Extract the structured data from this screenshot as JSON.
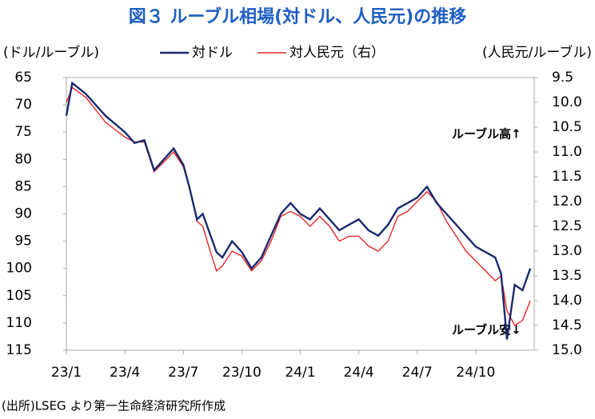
{
  "chart_data": {
    "type": "line",
    "title": "図３ ルーブル相場(対ドル、人民元)の推移",
    "y_label": "(ドル/ルーブル)",
    "y2_label": "(人民元/ルーブル)",
    "annotations": [
      "ルーブル高↑",
      "ルーブル安↓"
    ],
    "source": "(出所)LSEG より第一生命経済研究所作成",
    "x": [
      0,
      0.3,
      1,
      2,
      3,
      3.5,
      4,
      4.5,
      5,
      5.5,
      6,
      6.3,
      6.7,
      7,
      7.3,
      7.7,
      8,
      8.5,
      9,
      9.5,
      10,
      10.5,
      11,
      11.5,
      12,
      12.5,
      13,
      13.5,
      14,
      14.5,
      15,
      15.5,
      16,
      16.5,
      17,
      17.5,
      18,
      18.5,
      19,
      19.5,
      20,
      20.5,
      21,
      21.5,
      22,
      22.3,
      22.6,
      23,
      23.4,
      23.8
    ],
    "xlim": [
      0,
      24
    ],
    "xticks": [
      {
        "value": 0,
        "label": "23/1"
      },
      {
        "value": 3,
        "label": "23/4"
      },
      {
        "value": 6,
        "label": "23/7"
      },
      {
        "value": 9,
        "label": "23/10"
      },
      {
        "value": 12,
        "label": "24/1"
      },
      {
        "value": 15,
        "label": "24/4"
      },
      {
        "value": 18,
        "label": "24/7"
      },
      {
        "value": 21,
        "label": "24/10"
      }
    ],
    "ylim": [
      65,
      115
    ],
    "y_inverted": true,
    "yticks": [
      65,
      70,
      75,
      80,
      85,
      90,
      95,
      100,
      105,
      110,
      115
    ],
    "y2lim": [
      9.5,
      15
    ],
    "y2_inverted": true,
    "y2ticks": [
      9.5,
      {
        "value": 10,
        "label": "10.0"
      },
      10.5,
      {
        "value": 11,
        "label": "11.0"
      },
      11.5,
      {
        "value": 12,
        "label": "12.0"
      },
      12.5,
      {
        "value": 13,
        "label": "13.0"
      },
      13.5,
      {
        "value": 14,
        "label": "14.0"
      },
      14.5,
      {
        "value": 15,
        "label": "15.0"
      }
    ],
    "series": [
      {
        "name": "対ドル",
        "color": "#1a2a6c",
        "values": [
          72,
          66,
          68,
          72,
          75,
          77,
          76.5,
          82,
          80,
          78,
          81,
          85,
          91,
          90,
          93,
          97,
          98,
          95,
          97,
          100,
          98,
          94,
          90,
          88,
          90,
          91,
          89,
          91,
          93,
          92,
          91,
          93,
          94,
          92,
          89,
          88,
          87,
          85,
          88,
          90,
          92,
          94,
          96,
          97,
          98,
          101,
          113,
          103,
          104,
          100
        ]
      },
      {
        "name": "対人民元（右）",
        "color": "#e8262a",
        "axis": "y2",
        "values": [
          10.0,
          9.7,
          9.9,
          10.4,
          10.7,
          10.8,
          10.8,
          11.4,
          11.2,
          11.0,
          11.3,
          11.7,
          12.4,
          12.5,
          12.9,
          13.4,
          13.3,
          13.0,
          13.1,
          13.4,
          13.2,
          12.8,
          12.3,
          12.2,
          12.3,
          12.5,
          12.3,
          12.5,
          12.8,
          12.7,
          12.7,
          12.9,
          13.0,
          12.8,
          12.3,
          12.2,
          12.0,
          11.8,
          12.0,
          12.4,
          12.7,
          13.0,
          13.2,
          13.4,
          13.6,
          13.5,
          14.2,
          14.5,
          14.4,
          14.0
        ]
      }
    ]
  }
}
